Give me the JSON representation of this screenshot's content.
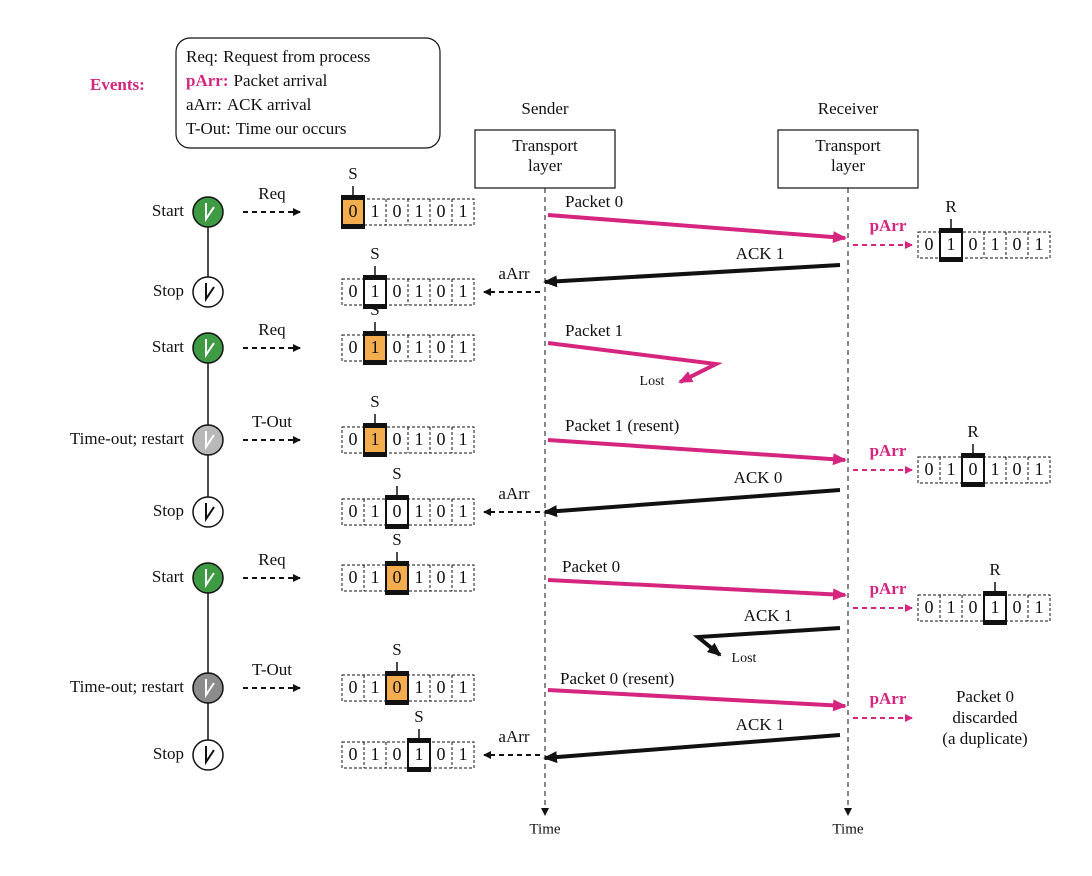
{
  "legend": {
    "title": "Events:",
    "items": [
      {
        "key": "Req:",
        "text": "Request from process"
      },
      {
        "key": "pArr:",
        "text": "Packet arrival"
      },
      {
        "key": "aArr:",
        "text": "ACK arrival"
      },
      {
        "key": "T-Out:",
        "text": "Time our occurs"
      }
    ]
  },
  "sender": {
    "title": "Sender",
    "layer": [
      "Transport",
      "layer"
    ],
    "time": "Time"
  },
  "receiver": {
    "title": "Receiver",
    "layer": [
      "Transport",
      "layer"
    ],
    "time": "Time"
  },
  "sender_rows": [
    {
      "state": "Start",
      "event": "Req",
      "pointer": "S",
      "bits": [
        "0",
        "1",
        "0",
        "1",
        "0",
        "1"
      ]
    },
    {
      "state": "Stop",
      "event": "aArr",
      "pointer": "S",
      "bits": [
        "0",
        "1",
        "0",
        "1",
        "0",
        "1"
      ]
    },
    {
      "state": "Start",
      "event": "Req",
      "pointer": "S",
      "bits": [
        "0",
        "1",
        "0",
        "1",
        "0",
        "1"
      ]
    },
    {
      "state": "Time-out; restart",
      "event": "T-Out",
      "pointer": "S",
      "bits": [
        "0",
        "1",
        "0",
        "1",
        "0",
        "1"
      ]
    },
    {
      "state": "Stop",
      "event": "aArr",
      "pointer": "S",
      "bits": [
        "0",
        "1",
        "0",
        "1",
        "0",
        "1"
      ]
    },
    {
      "state": "Start",
      "event": "Req",
      "pointer": "S",
      "bits": [
        "0",
        "1",
        "0",
        "1",
        "0",
        "1"
      ]
    },
    {
      "state": "Time-out; restart",
      "event": "T-Out",
      "pointer": "S",
      "bits": [
        "0",
        "1",
        "0",
        "1",
        "0",
        "1"
      ]
    },
    {
      "state": "Stop",
      "event": "aArr",
      "pointer": "S",
      "bits": [
        "0",
        "1",
        "0",
        "1",
        "0",
        "1"
      ]
    }
  ],
  "messages": [
    {
      "label": "Packet 0"
    },
    {
      "label": "ACK 1"
    },
    {
      "label": "Packet 1",
      "lost": "Lost"
    },
    {
      "label": "Packet 1 (resent)"
    },
    {
      "label": "ACK 0"
    },
    {
      "label": "Packet 0"
    },
    {
      "label": "ACK 1",
      "lost": "Lost"
    },
    {
      "label": "Packet 0 (resent)"
    },
    {
      "label": "ACK 1"
    }
  ],
  "receiver_events": [
    {
      "event": "pArr",
      "pointer": "R",
      "bits": [
        "0",
        "1",
        "0",
        "1",
        "0",
        "1"
      ]
    },
    {
      "event": "pArr",
      "pointer": "R",
      "bits": [
        "0",
        "1",
        "0",
        "1",
        "0",
        "1"
      ]
    },
    {
      "event": "pArr",
      "pointer": "R",
      "bits": [
        "0",
        "1",
        "0",
        "1",
        "0",
        "1"
      ]
    },
    {
      "event": "pArr",
      "note": [
        "Packet 0",
        "discarded",
        "(a duplicate)"
      ]
    }
  ]
}
